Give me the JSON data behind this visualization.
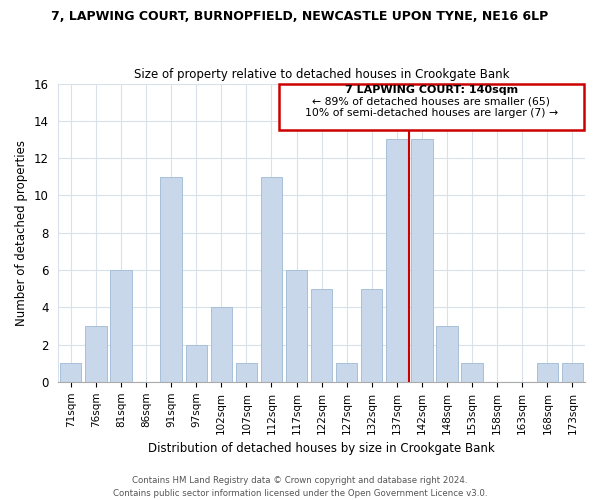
{
  "title": "7, LAPWING COURT, BURNOPFIELD, NEWCASTLE UPON TYNE, NE16 6LP",
  "subtitle": "Size of property relative to detached houses in Crookgate Bank",
  "xlabel": "Distribution of detached houses by size in Crookgate Bank",
  "ylabel": "Number of detached properties",
  "bar_labels": [
    "71sqm",
    "76sqm",
    "81sqm",
    "86sqm",
    "91sqm",
    "97sqm",
    "102sqm",
    "107sqm",
    "112sqm",
    "117sqm",
    "122sqm",
    "127sqm",
    "132sqm",
    "137sqm",
    "142sqm",
    "148sqm",
    "153sqm",
    "158sqm",
    "163sqm",
    "168sqm",
    "173sqm"
  ],
  "bar_heights": [
    1,
    3,
    6,
    0,
    11,
    2,
    4,
    1,
    11,
    6,
    5,
    1,
    5,
    13,
    13,
    3,
    1,
    0,
    0,
    1,
    1
  ],
  "bar_color": "#c8d8ea",
  "bar_edge_color": "#a8c0d8",
  "vline_color": "#cc0000",
  "ylim": [
    0,
    16
  ],
  "yticks": [
    0,
    2,
    4,
    6,
    8,
    10,
    12,
    14,
    16
  ],
  "annotation_title": "7 LAPWING COURT: 140sqm",
  "annotation_line1": "← 89% of detached houses are smaller (65)",
  "annotation_line2": "10% of semi-detached houses are larger (7) →",
  "annotation_box_color": "#ffffff",
  "annotation_border_color": "#cc0000",
  "footer_line1": "Contains HM Land Registry data © Crown copyright and database right 2024.",
  "footer_line2": "Contains public sector information licensed under the Open Government Licence v3.0.",
  "bg_color": "#ffffff",
  "grid_color": "#d8e0ea"
}
